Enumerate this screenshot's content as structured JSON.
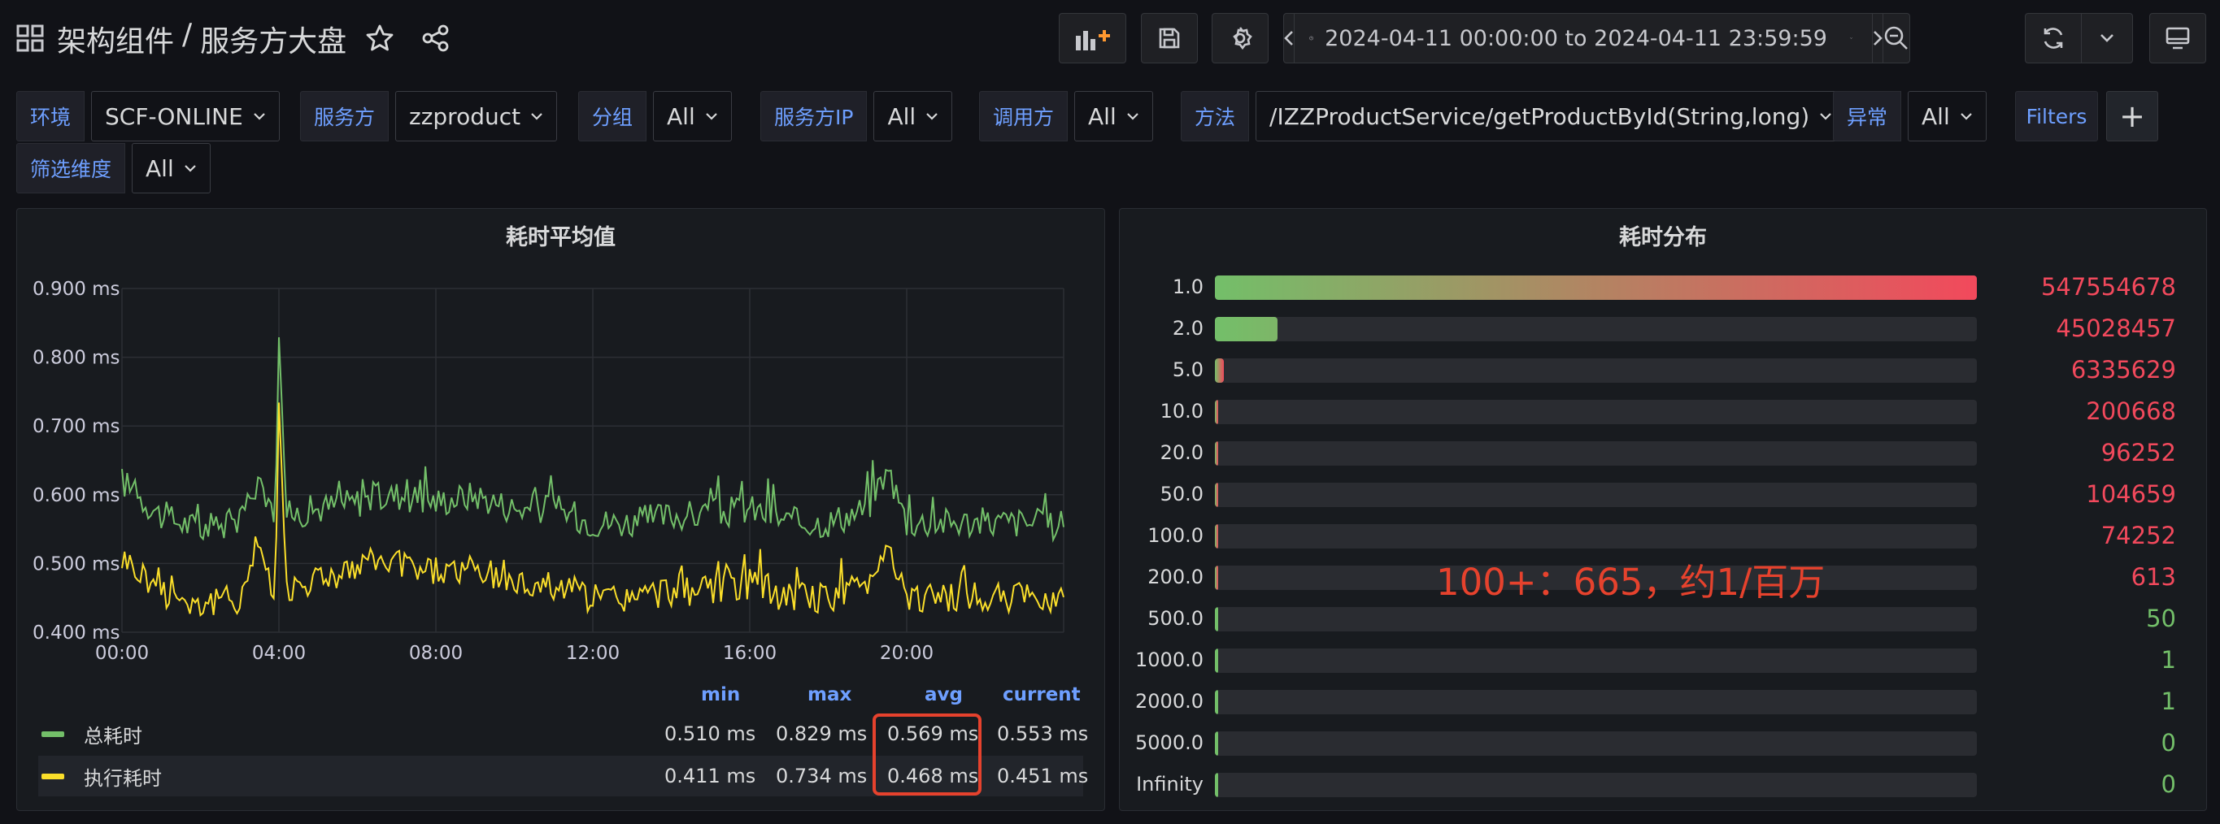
{
  "header": {
    "breadcrumb_parent": "架构组件",
    "breadcrumb_sep": "/",
    "breadcrumb_current": "服务方大盘",
    "time_from": "2024-04-11 00:00:00",
    "time_to_word": "to",
    "time_until": "2024-04-11 23:59:59"
  },
  "variables": [
    {
      "label": "环境",
      "value": "SCF-ONLINE"
    },
    {
      "label": "服务方",
      "value": "zzproduct"
    },
    {
      "label": "分组",
      "value": "All"
    },
    {
      "label": "服务方IP",
      "value": "All"
    },
    {
      "label": "调用方",
      "value": "All"
    },
    {
      "label": "方法",
      "value": "/IZZProductService/getProductById(String,long)"
    },
    {
      "label": "异常",
      "value": "All"
    },
    {
      "label": "筛选维度",
      "value": "All"
    }
  ],
  "filters_label": "Filters",
  "add_label": "+",
  "panel_left": {
    "title": "耗时平均值",
    "y_ticks": [
      "0.900 ms",
      "0.800 ms",
      "0.700 ms",
      "0.600 ms",
      "0.500 ms",
      "0.400 ms"
    ],
    "x_ticks": [
      "00:00",
      "04:00",
      "08:00",
      "12:00",
      "16:00",
      "20:00"
    ],
    "legend_headers": {
      "min": "min",
      "max": "max",
      "avg": "avg",
      "current": "current"
    },
    "legend": [
      {
        "name": "总耗时",
        "color": "#73bf69",
        "min": "0.510 ms",
        "max": "0.829 ms",
        "avg": "0.569 ms",
        "current": "0.553 ms"
      },
      {
        "name": "执行耗时",
        "color": "#fade2a",
        "min": "0.411 ms",
        "max": "0.734 ms",
        "avg": "0.468 ms",
        "current": "0.451 ms"
      }
    ]
  },
  "chart_data": {
    "type": "line",
    "title": "耗时平均值",
    "xlabel": "",
    "ylabel": "",
    "ylim": [
      0.4,
      0.9
    ],
    "x_range": [
      "00:00",
      "24:00"
    ],
    "series": [
      {
        "name": "总耗时",
        "color": "#73bf69",
        "min": 0.51,
        "max": 0.829,
        "avg": 0.569,
        "current": 0.553,
        "x": [
          0,
          1,
          2,
          3,
          3.5,
          3.9,
          4.0,
          4.2,
          5,
          6,
          7,
          8,
          9,
          10,
          11,
          12,
          13,
          14,
          15,
          16,
          17,
          18,
          19,
          19.5,
          20,
          21,
          22,
          23,
          24
        ],
        "y": [
          0.62,
          0.57,
          0.55,
          0.56,
          0.63,
          0.55,
          0.829,
          0.57,
          0.58,
          0.59,
          0.6,
          0.59,
          0.6,
          0.58,
          0.58,
          0.56,
          0.56,
          0.57,
          0.57,
          0.58,
          0.56,
          0.56,
          0.58,
          0.64,
          0.56,
          0.56,
          0.56,
          0.56,
          0.553
        ]
      },
      {
        "name": "执行耗时",
        "color": "#fade2a",
        "min": 0.411,
        "max": 0.734,
        "avg": 0.468,
        "current": 0.451,
        "x": [
          0,
          1,
          2,
          3,
          3.5,
          3.9,
          4.0,
          4.2,
          5,
          6,
          7,
          8,
          9,
          10,
          11,
          12,
          13,
          14,
          15,
          16,
          17,
          18,
          19,
          19.5,
          20,
          21,
          22,
          23,
          24
        ],
        "y": [
          0.51,
          0.46,
          0.44,
          0.45,
          0.53,
          0.44,
          0.734,
          0.46,
          0.48,
          0.49,
          0.5,
          0.49,
          0.49,
          0.47,
          0.47,
          0.45,
          0.45,
          0.46,
          0.46,
          0.47,
          0.45,
          0.45,
          0.47,
          0.53,
          0.45,
          0.45,
          0.45,
          0.45,
          0.451
        ]
      }
    ]
  },
  "panel_right": {
    "title": "耗时分布",
    "rows": [
      {
        "label": "1.0",
        "value": "547554678",
        "fraction": 1.0,
        "color": "#f2495c"
      },
      {
        "label": "2.0",
        "value": "45028457",
        "fraction": 0.0822,
        "color": "#f2495c"
      },
      {
        "label": "5.0",
        "value": "6335629",
        "fraction": 0.0116,
        "color": "#f2495c"
      },
      {
        "label": "10.0",
        "value": "200668",
        "fraction": 0.0004,
        "color": "#f2495c"
      },
      {
        "label": "20.0",
        "value": "96252",
        "fraction": 0.0002,
        "color": "#f2495c"
      },
      {
        "label": "50.0",
        "value": "104659",
        "fraction": 0.0002,
        "color": "#f2495c"
      },
      {
        "label": "100.0",
        "value": "74252",
        "fraction": 0.0001,
        "color": "#f2495c"
      },
      {
        "label": "200.0",
        "value": "613",
        "fraction": 0.0,
        "color": "#f2495c"
      },
      {
        "label": "500.0",
        "value": "50",
        "fraction": 0.0,
        "color": "#73bf69"
      },
      {
        "label": "1000.0",
        "value": "1",
        "fraction": 0.0,
        "color": "#73bf69"
      },
      {
        "label": "2000.0",
        "value": "1",
        "fraction": 0.0,
        "color": "#73bf69"
      },
      {
        "label": "5000.0",
        "value": "0",
        "fraction": 0.0,
        "color": "#73bf69"
      },
      {
        "label": "Infinity",
        "value": "0",
        "fraction": 0.0,
        "color": "#73bf69"
      }
    ],
    "annotation": "100+：665，约1/百万"
  }
}
